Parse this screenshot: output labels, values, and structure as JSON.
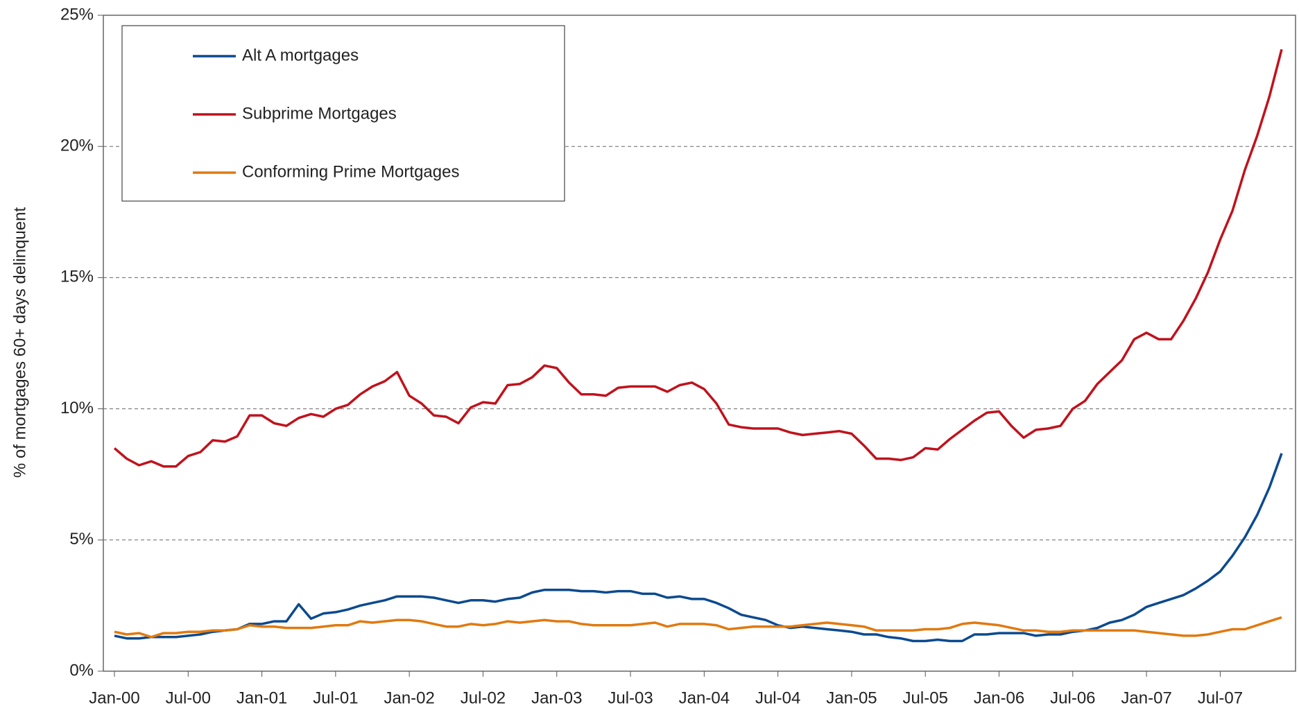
{
  "chart_data": {
    "type": "line",
    "y_label": "% of mortgages 60+ days delinquent",
    "categories": [
      "Jan-00",
      null,
      null,
      null,
      null,
      null,
      "Jul-00",
      null,
      null,
      null,
      null,
      null,
      "Jan-01",
      null,
      null,
      null,
      null,
      null,
      "Jul-01",
      null,
      null,
      null,
      null,
      null,
      "Jan-02",
      null,
      null,
      null,
      null,
      null,
      "Jul-02",
      null,
      null,
      null,
      null,
      null,
      "Jan-03",
      null,
      null,
      null,
      null,
      null,
      "Jul-03",
      null,
      null,
      null,
      null,
      null,
      "Jan-04",
      null,
      null,
      null,
      null,
      null,
      "Jul-04",
      null,
      null,
      null,
      null,
      null,
      "Jan-05",
      null,
      null,
      null,
      null,
      null,
      "Jul-05",
      null,
      null,
      null,
      null,
      null,
      "Jan-06",
      null,
      null,
      null,
      null,
      null,
      "Jul-06",
      null,
      null,
      null,
      null,
      null,
      "Jan-07",
      null,
      null,
      null,
      null,
      null,
      "Jul-07",
      null,
      null,
      null,
      null,
      null
    ],
    "series": [
      {
        "name": "Alt A mortgages",
        "color": "#0b4a8f",
        "values": [
          1.35,
          1.25,
          1.25,
          1.3,
          1.3,
          1.3,
          1.35,
          1.4,
          1.5,
          1.55,
          1.6,
          1.8,
          1.8,
          1.9,
          1.9,
          2.55,
          2.0,
          2.2,
          2.25,
          2.35,
          2.5,
          2.6,
          2.7,
          2.85,
          2.85,
          2.85,
          2.8,
          2.7,
          2.6,
          2.7,
          2.7,
          2.65,
          2.75,
          2.8,
          3.0,
          3.1,
          3.1,
          3.1,
          3.05,
          3.05,
          3.0,
          3.05,
          3.05,
          2.95,
          2.95,
          2.8,
          2.85,
          2.75,
          2.75,
          2.6,
          2.4,
          2.15,
          2.05,
          1.95,
          1.75,
          1.65,
          1.7,
          1.65,
          1.6,
          1.55,
          1.5,
          1.4,
          1.4,
          1.3,
          1.25,
          1.15,
          1.15,
          1.2,
          1.15,
          1.15,
          1.4,
          1.4,
          1.45,
          1.45,
          1.45,
          1.35,
          1.4,
          1.4,
          1.5,
          1.55,
          1.65,
          1.85,
          1.95,
          2.15,
          2.45,
          2.6,
          2.75,
          2.9,
          3.15,
          3.45,
          3.8,
          4.4,
          5.1,
          5.95,
          7.0,
          8.3
        ]
      },
      {
        "name": "Subprime Mortgages",
        "color": "#c0121c",
        "values": [
          8.5,
          8.1,
          7.85,
          8.0,
          7.8,
          7.8,
          8.2,
          8.35,
          8.8,
          8.75,
          8.95,
          9.75,
          9.75,
          9.45,
          9.35,
          9.65,
          9.8,
          9.7,
          10.0,
          10.15,
          10.55,
          10.85,
          11.05,
          11.4,
          10.5,
          10.2,
          9.75,
          9.7,
          9.45,
          10.05,
          10.25,
          10.2,
          10.9,
          10.95,
          11.2,
          11.65,
          11.55,
          11.0,
          10.55,
          10.55,
          10.5,
          10.8,
          10.85,
          10.85,
          10.85,
          10.65,
          10.9,
          11.0,
          10.75,
          10.2,
          9.4,
          9.3,
          9.25,
          9.25,
          9.25,
          9.1,
          9.0,
          9.05,
          9.1,
          9.15,
          9.05,
          8.6,
          8.1,
          8.1,
          8.05,
          8.15,
          8.5,
          8.45,
          8.85,
          9.2,
          9.55,
          9.85,
          9.9,
          9.35,
          8.9,
          9.2,
          9.25,
          9.35,
          10.0,
          10.3,
          10.95,
          11.4,
          11.85,
          12.65,
          12.9,
          12.65,
          12.65,
          13.35,
          14.2,
          15.2,
          16.45,
          17.55,
          19.1,
          20.4,
          21.9,
          23.7
        ]
      },
      {
        "name": "Conforming Prime Mortgages",
        "color": "#e07a10",
        "values": [
          1.5,
          1.4,
          1.45,
          1.3,
          1.45,
          1.45,
          1.5,
          1.5,
          1.55,
          1.55,
          1.6,
          1.75,
          1.7,
          1.7,
          1.65,
          1.65,
          1.65,
          1.7,
          1.75,
          1.75,
          1.9,
          1.85,
          1.9,
          1.95,
          1.95,
          1.9,
          1.8,
          1.7,
          1.7,
          1.8,
          1.75,
          1.8,
          1.9,
          1.85,
          1.9,
          1.95,
          1.9,
          1.9,
          1.8,
          1.75,
          1.75,
          1.75,
          1.75,
          1.8,
          1.85,
          1.7,
          1.8,
          1.8,
          1.8,
          1.75,
          1.6,
          1.65,
          1.7,
          1.7,
          1.7,
          1.7,
          1.75,
          1.8,
          1.85,
          1.8,
          1.75,
          1.7,
          1.55,
          1.55,
          1.55,
          1.55,
          1.6,
          1.6,
          1.65,
          1.8,
          1.85,
          1.8,
          1.75,
          1.65,
          1.55,
          1.55,
          1.5,
          1.5,
          1.55,
          1.55,
          1.55,
          1.55,
          1.55,
          1.55,
          1.5,
          1.45,
          1.4,
          1.35,
          1.35,
          1.4,
          1.5,
          1.6,
          1.6,
          1.75,
          1.9,
          2.05
        ]
      }
    ],
    "ylim": [
      0,
      25
    ],
    "yticks": [
      {
        "value": 0,
        "label": "0%"
      },
      {
        "value": 5,
        "label": "5%"
      },
      {
        "value": 10,
        "label": "10%"
      },
      {
        "value": 15,
        "label": "15%"
      },
      {
        "value": 20,
        "label": "20%"
      },
      {
        "value": 25,
        "label": "25%"
      }
    ],
    "grid": true,
    "legend": "upper left"
  }
}
